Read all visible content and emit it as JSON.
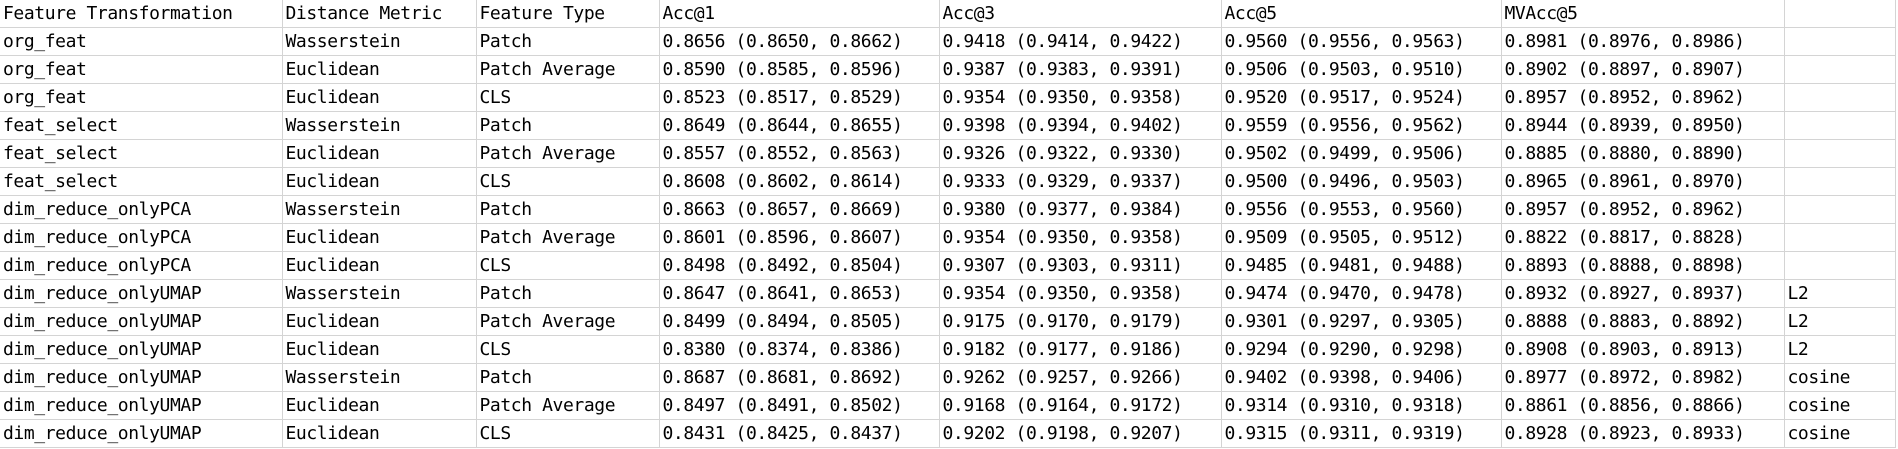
{
  "table": {
    "headers": [
      "Feature Transformation",
      "Distance Metric",
      "Feature Type",
      "Acc@1",
      "Acc@3",
      "Acc@5",
      "MVAcc@5",
      ""
    ],
    "rows": [
      [
        "org_feat",
        "Wasserstein",
        "Patch",
        "0.8656 (0.8650, 0.8662)",
        "0.9418 (0.9414, 0.9422)",
        "0.9560 (0.9556, 0.9563)",
        "0.8981 (0.8976, 0.8986)",
        ""
      ],
      [
        "org_feat",
        "Euclidean",
        "Patch Average",
        "0.8590 (0.8585, 0.8596)",
        "0.9387 (0.9383, 0.9391)",
        "0.9506 (0.9503, 0.9510)",
        "0.8902 (0.8897, 0.8907)",
        ""
      ],
      [
        "org_feat",
        "Euclidean",
        "CLS",
        "0.8523 (0.8517, 0.8529)",
        "0.9354 (0.9350, 0.9358)",
        "0.9520 (0.9517, 0.9524)",
        "0.8957 (0.8952, 0.8962)",
        ""
      ],
      [
        "feat_select",
        "Wasserstein",
        "Patch",
        "0.8649 (0.8644, 0.8655)",
        "0.9398 (0.9394, 0.9402)",
        "0.9559 (0.9556, 0.9562)",
        "0.8944 (0.8939, 0.8950)",
        ""
      ],
      [
        "feat_select",
        "Euclidean",
        "Patch Average",
        "0.8557 (0.8552, 0.8563)",
        "0.9326 (0.9322, 0.9330)",
        "0.9502 (0.9499, 0.9506)",
        "0.8885 (0.8880, 0.8890)",
        ""
      ],
      [
        "feat_select",
        "Euclidean",
        "CLS",
        "0.8608 (0.8602, 0.8614)",
        "0.9333 (0.9329, 0.9337)",
        "0.9500 (0.9496, 0.9503)",
        "0.8965 (0.8961, 0.8970)",
        ""
      ],
      [
        "dim_reduce_onlyPCA",
        "Wasserstein",
        "Patch",
        "0.8663 (0.8657, 0.8669)",
        "0.9380 (0.9377, 0.9384)",
        "0.9556 (0.9553, 0.9560)",
        "0.8957 (0.8952, 0.8962)",
        ""
      ],
      [
        "dim_reduce_onlyPCA",
        "Euclidean",
        "Patch Average",
        "0.8601 (0.8596, 0.8607)",
        "0.9354 (0.9350, 0.9358)",
        "0.9509 (0.9505, 0.9512)",
        "0.8822 (0.8817, 0.8828)",
        ""
      ],
      [
        "dim_reduce_onlyPCA",
        "Euclidean",
        "CLS",
        "0.8498 (0.8492, 0.8504)",
        "0.9307 (0.9303, 0.9311)",
        "0.9485 (0.9481, 0.9488)",
        "0.8893 (0.8888, 0.8898)",
        ""
      ],
      [
        "dim_reduce_onlyUMAP",
        "Wasserstein",
        "Patch",
        "0.8647 (0.8641, 0.8653)",
        "0.9354 (0.9350, 0.9358)",
        "0.9474 (0.9470, 0.9478)",
        "0.8932 (0.8927, 0.8937)",
        "L2"
      ],
      [
        "dim_reduce_onlyUMAP",
        "Euclidean",
        "Patch Average",
        "0.8499 (0.8494, 0.8505)",
        "0.9175 (0.9170, 0.9179)",
        "0.9301 (0.9297, 0.9305)",
        "0.8888 (0.8883, 0.8892)",
        "L2"
      ],
      [
        "dim_reduce_onlyUMAP",
        "Euclidean",
        "CLS",
        "0.8380 (0.8374, 0.8386)",
        "0.9182 (0.9177, 0.9186)",
        "0.9294 (0.9290, 0.9298)",
        "0.8908 (0.8903, 0.8913)",
        "L2"
      ],
      [
        "dim_reduce_onlyUMAP",
        "Wasserstein",
        "Patch",
        "0.8687 (0.8681, 0.8692)",
        "0.9262 (0.9257, 0.9266)",
        "0.9402 (0.9398, 0.9406)",
        "0.8977 (0.8972, 0.8982)",
        "cosine"
      ],
      [
        "dim_reduce_onlyUMAP",
        "Euclidean",
        "Patch Average",
        "0.8497 (0.8491, 0.8502)",
        "0.9168 (0.9164, 0.9172)",
        "0.9314 (0.9310, 0.9318)",
        "0.8861 (0.8856, 0.8866)",
        "cosine"
      ],
      [
        "dim_reduce_onlyUMAP",
        "Euclidean",
        "CLS",
        "0.8431 (0.8425, 0.8437)",
        "0.9202 (0.9198, 0.9207)",
        "0.9315 (0.9311, 0.9319)",
        "0.8928 (0.8923, 0.8933)",
        "cosine"
      ]
    ]
  }
}
